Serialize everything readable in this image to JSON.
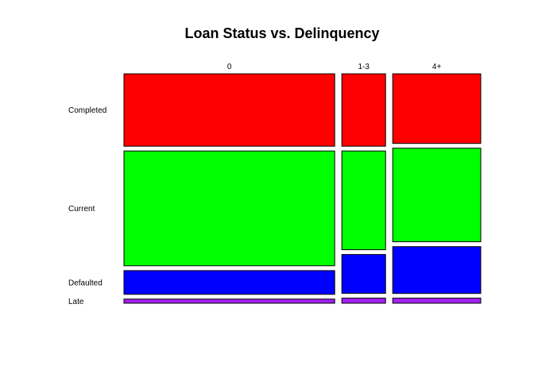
{
  "chart_data": {
    "type": "mosaic",
    "title": "Loan Status vs. Delinquency",
    "xlabel": "",
    "ylabel": "",
    "columns": [
      "0",
      "1-3",
      "4+"
    ],
    "column_proportions": [
      0.632,
      0.131,
      0.264
    ],
    "rows": [
      "Completed",
      "Current",
      "Defaulted",
      "Late"
    ],
    "row_colors": [
      "#FF0000",
      "#00FF00",
      "#0000FF",
      "#A020F0"
    ],
    "proportions": [
      [
        0.314,
        0.498,
        0.103,
        0.018
      ],
      [
        0.329,
        0.449,
        0.177,
        0.023
      ],
      [
        0.317,
        0.426,
        0.213,
        0.023
      ]
    ],
    "grid": false,
    "legend": "none"
  }
}
